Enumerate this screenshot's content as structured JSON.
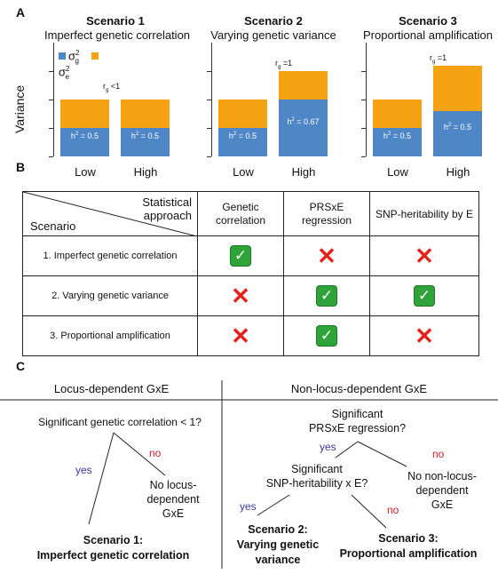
{
  "panel_a": {
    "letter": "A",
    "ylabel": "Variance",
    "legend": {
      "g_symbol": "σ",
      "g_sup": "2",
      "g_sub": "g",
      "e_symbol": "σ",
      "e_sup": "2",
      "e_sub": "e"
    },
    "colors": {
      "genetic": "#4f86c6",
      "environment": "#f5a313"
    },
    "scenarios": [
      {
        "title": "Scenario 1",
        "subtitle": "Imperfect genetic correlation",
        "rg": "r",
        "rg_sub": "g",
        "rg_rest": " <1",
        "bars": [
          {
            "x": "Low",
            "genetic": 0.5,
            "env": 0.5,
            "h2": "h",
            "h2_rest": " = 0.5"
          },
          {
            "x": "High",
            "genetic": 0.5,
            "env": 0.5,
            "h2": "h",
            "h2_rest": " = 0.5"
          }
        ]
      },
      {
        "title": "Scenario 2",
        "subtitle": "Varying genetic variance",
        "rg": "r",
        "rg_sub": "g",
        "rg_rest": " =1",
        "bars": [
          {
            "x": "Low",
            "genetic": 0.5,
            "env": 0.5,
            "h2": "h",
            "h2_rest": " = 0.5"
          },
          {
            "x": "High",
            "genetic": 1.0,
            "env": 0.5,
            "h2": "h",
            "h2_rest": " = 0.67"
          }
        ]
      },
      {
        "title": "Scenario 3",
        "subtitle": "Proportional amplification",
        "rg": "r",
        "rg_sub": "g",
        "rg_rest": " =1",
        "bars": [
          {
            "x": "Low",
            "genetic": 0.5,
            "env": 0.5,
            "h2": "h",
            "h2_rest": " = 0.5"
          },
          {
            "x": "High",
            "genetic": 0.8,
            "env": 0.8,
            "h2": "h",
            "h2_rest": " = 0.5"
          }
        ]
      }
    ]
  },
  "panel_b": {
    "letter": "B",
    "header_corner_top": "Statistical",
    "header_corner_mid": "approach",
    "header_corner_bottom": "Scenario",
    "columns": [
      "Genetic correlation",
      "PRSxE regression",
      "SNP-heritability by E"
    ],
    "column_lines": [
      [
        "Genetic",
        "correlation"
      ],
      [
        "PRSxE",
        "regression"
      ],
      [
        "SNP-heritability by E"
      ]
    ],
    "rows": [
      {
        "label": "1. Imperfect genetic correlation",
        "marks": [
          "check",
          "cross",
          "cross"
        ]
      },
      {
        "label": "2. Varying genetic variance",
        "marks": [
          "cross",
          "check",
          "check"
        ]
      },
      {
        "label": "3. Proportional amplification",
        "marks": [
          "cross",
          "check",
          "cross"
        ]
      }
    ]
  },
  "panel_c": {
    "letter": "C",
    "left_header": "Locus-dependent GxE",
    "right_header": "Non-locus-dependent GxE",
    "q1": "Significant genetic correlation < 1?",
    "q2_line1": "Significant",
    "q2_line2": "PRSxE regression?",
    "q3_line1": "Significant",
    "q3_line2": "SNP-heritability x E?",
    "yes": "yes",
    "no": "no",
    "no_locus_left": [
      "No locus-",
      "dependent",
      "GxE"
    ],
    "no_locus_right": [
      "No non-locus-",
      "dependent",
      "GxE"
    ],
    "outcome1": [
      "Scenario 1:",
      "Imperfect genetic correlation"
    ],
    "outcome2": [
      "Scenario 2:",
      "Varying genetic",
      "variance"
    ],
    "outcome3": [
      "Scenario 3:",
      "Proportional amplification"
    ]
  }
}
